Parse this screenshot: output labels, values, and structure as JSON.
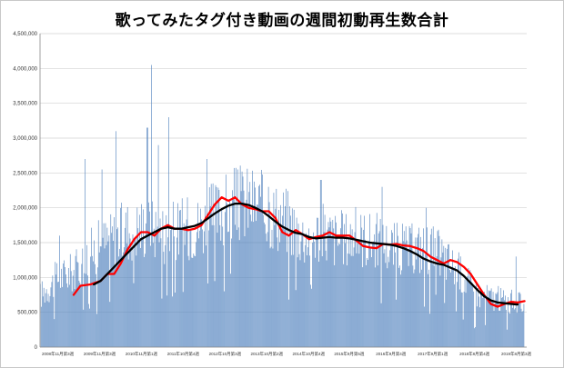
{
  "chart_data": {
    "type": "bar",
    "title": "歌ってみたタグ付き動画の週間初動再生数合計",
    "xlabel": "",
    "ylabel": "",
    "ylim": [
      0,
      4500000
    ],
    "y_ticks": [
      {
        "value": 0,
        "label": "0"
      },
      {
        "value": 500000,
        "label": "500,000"
      },
      {
        "value": 1000000,
        "label": "1,000,000"
      },
      {
        "value": 1500000,
        "label": "1,500,000"
      },
      {
        "value": 2000000,
        "label": "2,000,000"
      },
      {
        "value": 2500000,
        "label": "2,500,000"
      },
      {
        "value": 3000000,
        "label": "3,000,000"
      },
      {
        "value": 3500000,
        "label": "3,500,000"
      },
      {
        "value": 4000000,
        "label": "4,000,000"
      },
      {
        "value": 4500000,
        "label": "4,500,000"
      }
    ],
    "x_ticks": [
      "2008年11月第3週",
      "2009年11月第3週",
      "2010年11月第1週",
      "2011年10月第4週",
      "2012年10月第3週",
      "2013年10月第2週",
      "2014年10月第4週",
      "2015年9月第5週",
      "2016年9月第4週",
      "2017年9月第1週",
      "2018年8月第4週",
      "2019年8月第3週"
    ],
    "grid": true,
    "colors": {
      "bars": "#4f81bd",
      "avg_red": "#ff0000",
      "avg_black": "#000000"
    },
    "bar_anchors": [
      [
        0,
        750000
      ],
      [
        4,
        1000000
      ],
      [
        8,
        1100000
      ],
      [
        12,
        1400000
      ],
      [
        16,
        1550000
      ],
      [
        20,
        1700000
      ],
      [
        24,
        1750000
      ],
      [
        28,
        1650000
      ],
      [
        32,
        1700000
      ],
      [
        36,
        1750000
      ],
      [
        40,
        1900000
      ],
      [
        44,
        2050000
      ],
      [
        48,
        2100000
      ],
      [
        52,
        1950000
      ],
      [
        56,
        1850000
      ],
      [
        60,
        1600000
      ],
      [
        64,
        1650000
      ],
      [
        68,
        1550000
      ],
      [
        72,
        1600000
      ],
      [
        76,
        1550000
      ],
      [
        80,
        1450000
      ],
      [
        84,
        1400000
      ],
      [
        88,
        1450000
      ],
      [
        92,
        1300000
      ],
      [
        96,
        1050000
      ],
      [
        100,
        750000
      ],
      [
        104,
        700000
      ],
      [
        108,
        650000
      ],
      [
        110.5,
        600000
      ]
    ],
    "bar_spikes": [
      [
        4.5,
        1600000
      ],
      [
        10.3,
        2700000
      ],
      [
        14,
        2550000
      ],
      [
        17.3,
        3100000
      ],
      [
        24.4,
        3150000
      ],
      [
        25.3,
        4050000
      ],
      [
        27,
        2900000
      ],
      [
        29.3,
        3300000
      ],
      [
        38,
        2700000
      ],
      [
        45,
        2550000
      ],
      [
        52,
        2300000
      ],
      [
        64,
        2400000
      ],
      [
        78,
        2300000
      ],
      [
        88,
        2000000
      ],
      [
        108.5,
        1300000
      ]
    ],
    "series": [
      {
        "name": "",
        "color": "#ff0000",
        "points": [
          [
            5,
            750000
          ],
          [
            6,
            880000
          ],
          [
            7.5,
            900000
          ],
          [
            9,
            950000
          ],
          [
            10,
            1050000
          ],
          [
            11,
            1050000
          ],
          [
            12,
            1200000
          ],
          [
            13,
            1400000
          ],
          [
            14,
            1550000
          ],
          [
            15,
            1650000
          ],
          [
            16,
            1650000
          ],
          [
            17,
            1600000
          ],
          [
            18,
            1700000
          ],
          [
            19,
            1750000
          ],
          [
            20,
            1700000
          ],
          [
            21,
            1700000
          ],
          [
            22,
            1680000
          ],
          [
            23,
            1700000
          ],
          [
            24,
            1750000
          ],
          [
            25,
            1900000
          ],
          [
            26,
            2050000
          ],
          [
            27,
            2150000
          ],
          [
            28,
            2100000
          ],
          [
            29,
            2150000
          ],
          [
            30,
            2050000
          ],
          [
            31,
            2000000
          ],
          [
            32,
            1980000
          ],
          [
            33,
            1950000
          ],
          [
            34,
            1950000
          ],
          [
            35,
            1850000
          ],
          [
            36,
            1650000
          ],
          [
            37,
            1600000
          ],
          [
            38,
            1680000
          ],
          [
            39,
            1620000
          ],
          [
            40,
            1550000
          ],
          [
            41,
            1580000
          ],
          [
            42,
            1600000
          ],
          [
            43,
            1650000
          ],
          [
            44,
            1600000
          ],
          [
            45,
            1600000
          ],
          [
            46,
            1600000
          ],
          [
            47,
            1530000
          ],
          [
            48,
            1450000
          ],
          [
            49,
            1430000
          ],
          [
            50,
            1420000
          ],
          [
            51,
            1480000
          ],
          [
            52,
            1470000
          ],
          [
            53,
            1480000
          ],
          [
            54,
            1460000
          ],
          [
            55,
            1450000
          ],
          [
            56,
            1420000
          ],
          [
            57,
            1380000
          ],
          [
            58,
            1300000
          ],
          [
            59,
            1250000
          ],
          [
            60,
            1200000
          ],
          [
            61,
            1250000
          ],
          [
            62,
            1220000
          ],
          [
            63,
            1150000
          ],
          [
            64,
            1050000
          ],
          [
            65,
            900000
          ],
          [
            66,
            750000
          ],
          [
            67,
            620000
          ],
          [
            68,
            580000
          ],
          [
            69,
            620000
          ],
          [
            70,
            650000
          ],
          [
            71,
            640000
          ],
          [
            72,
            660000
          ]
        ]
      },
      {
        "name": "",
        "color": "#000000",
        "points": [
          [
            8,
            900000
          ],
          [
            9,
            950000
          ],
          [
            10,
            1050000
          ],
          [
            11,
            1150000
          ],
          [
            12,
            1250000
          ],
          [
            13,
            1350000
          ],
          [
            14,
            1450000
          ],
          [
            15,
            1550000
          ],
          [
            16,
            1600000
          ],
          [
            17,
            1650000
          ],
          [
            18,
            1700000
          ],
          [
            19,
            1720000
          ],
          [
            20,
            1700000
          ],
          [
            21,
            1700000
          ],
          [
            22,
            1720000
          ],
          [
            23,
            1740000
          ],
          [
            24,
            1780000
          ],
          [
            25,
            1850000
          ],
          [
            26,
            1920000
          ],
          [
            27,
            1980000
          ],
          [
            28,
            2030000
          ],
          [
            29,
            2060000
          ],
          [
            30,
            2060000
          ],
          [
            31,
            2040000
          ],
          [
            32,
            2000000
          ],
          [
            33,
            1950000
          ],
          [
            34,
            1880000
          ],
          [
            35,
            1800000
          ],
          [
            36,
            1730000
          ],
          [
            37,
            1680000
          ],
          [
            38,
            1640000
          ],
          [
            39,
            1620000
          ],
          [
            40,
            1580000
          ],
          [
            41,
            1560000
          ],
          [
            42,
            1570000
          ],
          [
            43,
            1580000
          ],
          [
            44,
            1570000
          ],
          [
            45,
            1570000
          ],
          [
            46,
            1560000
          ],
          [
            47,
            1540000
          ],
          [
            48,
            1520000
          ],
          [
            49,
            1500000
          ],
          [
            50,
            1490000
          ],
          [
            51,
            1480000
          ],
          [
            52,
            1470000
          ],
          [
            53,
            1450000
          ],
          [
            54,
            1420000
          ],
          [
            55,
            1380000
          ],
          [
            56,
            1330000
          ],
          [
            57,
            1270000
          ],
          [
            58,
            1230000
          ],
          [
            59,
            1200000
          ],
          [
            60,
            1180000
          ],
          [
            61,
            1140000
          ],
          [
            62,
            1100000
          ],
          [
            63,
            1020000
          ],
          [
            64,
            920000
          ],
          [
            65,
            820000
          ],
          [
            66,
            730000
          ],
          [
            67,
            670000
          ],
          [
            68,
            640000
          ],
          [
            69,
            630000
          ],
          [
            70,
            620000
          ],
          [
            71,
            610000
          ]
        ]
      }
    ]
  }
}
